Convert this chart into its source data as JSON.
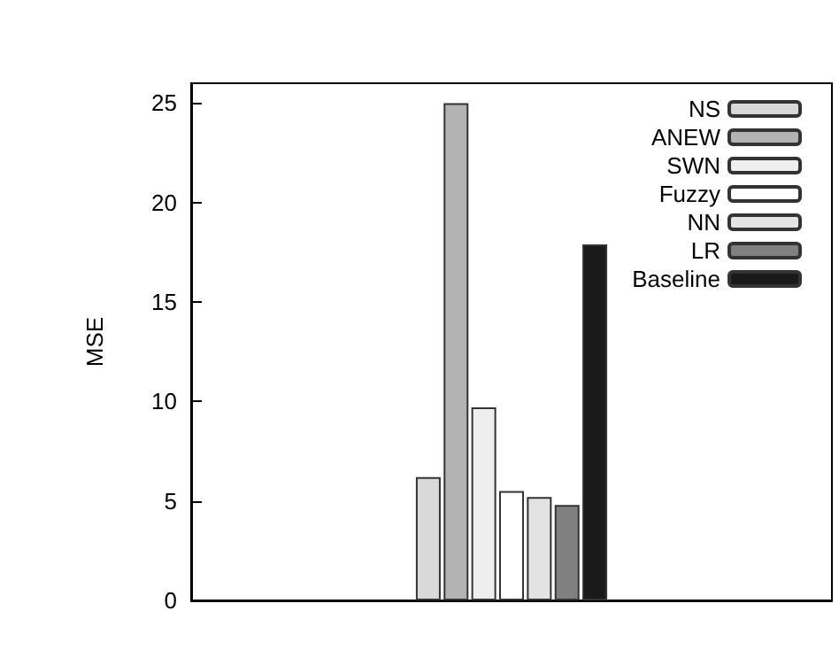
{
  "chart_data": {
    "type": "bar",
    "ylabel": "MSE",
    "categories": [
      null
    ],
    "series": [
      {
        "name": "NS",
        "color": "#d9d9d9",
        "values": [
          6.2
        ]
      },
      {
        "name": "ANEW",
        "color": "#b3b3b3",
        "values": [
          25
        ]
      },
      {
        "name": "SWN",
        "color": "#eeeeee",
        "values": [
          9.7
        ]
      },
      {
        "name": "Fuzzy",
        "color": "#ffffff",
        "values": [
          5.5
        ]
      },
      {
        "name": "NN",
        "color": "#e3e3e3",
        "values": [
          5.2
        ]
      },
      {
        "name": "LR",
        "color": "#808080",
        "values": [
          4.8
        ]
      },
      {
        "name": "Baseline",
        "color": "#1a1a1a",
        "values": [
          17.9
        ]
      }
    ],
    "ylim": [
      0,
      26
    ],
    "yticks": [
      0,
      5,
      10,
      15,
      20,
      25
    ],
    "grid": false,
    "legend": "top right"
  }
}
